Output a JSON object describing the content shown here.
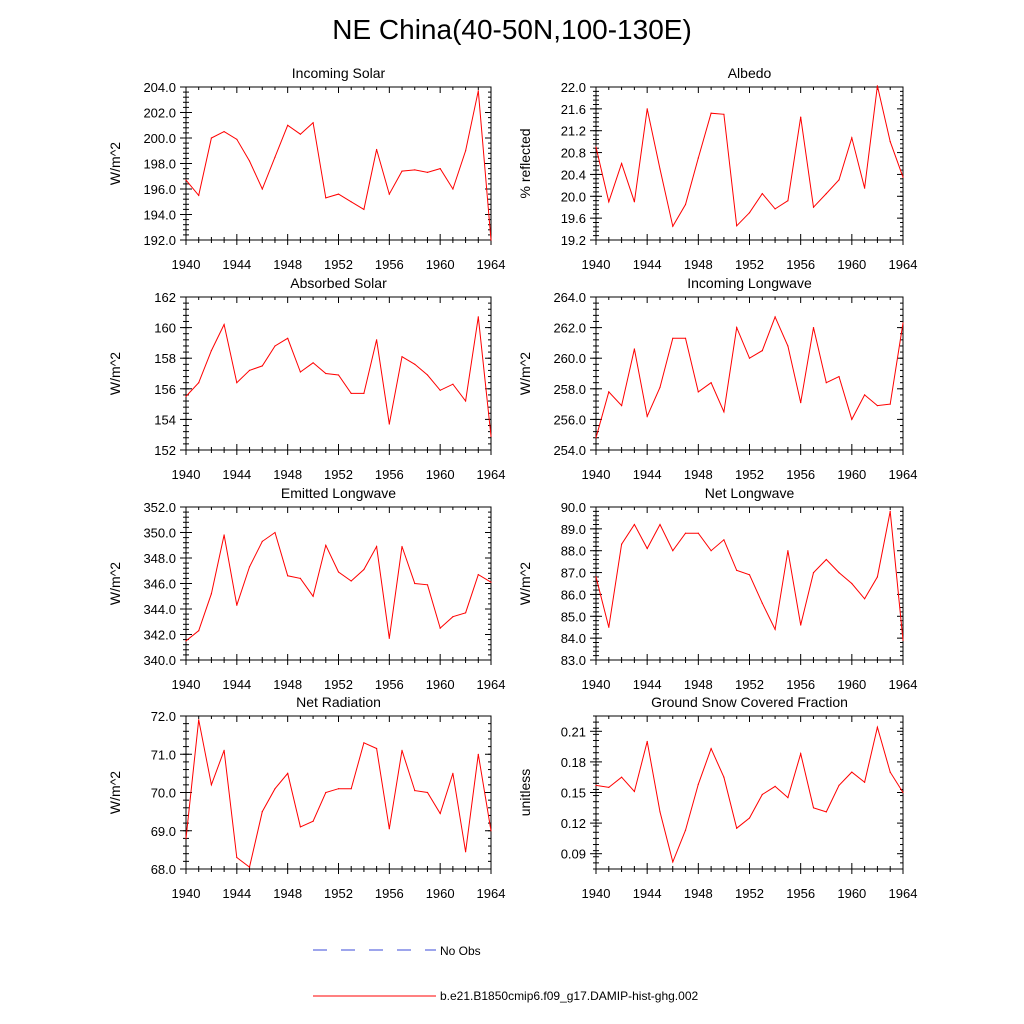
{
  "figure": {
    "title": "NE China(40-50N,100-130E)",
    "colors": {
      "model_line": "#ff0000",
      "obs_line": "#3b4bd8",
      "axis": "#000000"
    }
  },
  "legend": {
    "obs_label": "No Obs",
    "model_label": "b.e21.B1850cmip6.f09_g17.DAMIP-hist-ghg.002"
  },
  "chart_data": [
    {
      "type": "line",
      "title": "Incoming Solar",
      "ylabel": "W/m^2",
      "xlim": [
        1940,
        1964
      ],
      "ylim": [
        192,
        204
      ],
      "yticks": [
        "192.0",
        "194.0",
        "196.0",
        "198.0",
        "200.0",
        "202.0",
        "204.0"
      ],
      "ytick_values": [
        192,
        194,
        196,
        198,
        200,
        202,
        204
      ],
      "xticks": [
        "1940",
        "1944",
        "1948",
        "1952",
        "1956",
        "1960",
        "1964"
      ],
      "x": [
        1940,
        1941,
        1942,
        1943,
        1944,
        1945,
        1946,
        1947,
        1948,
        1949,
        1950,
        1951,
        1952,
        1953,
        1954,
        1955,
        1956,
        1957,
        1958,
        1959,
        1960,
        1961,
        1962,
        1963,
        1964
      ],
      "series": [
        {
          "name": "b.e21.B1850cmip6.f09_g17.DAMIP-hist-ghg.002",
          "values": [
            196.7,
            195.5,
            200.0,
            200.5,
            199.9,
            198.2,
            196.0,
            198.5,
            201.0,
            200.3,
            201.2,
            195.3,
            195.6,
            195.0,
            194.4,
            199.1,
            195.6,
            197.4,
            197.5,
            197.3,
            197.6,
            196.0,
            199.0,
            203.7,
            192.0
          ]
        }
      ]
    },
    {
      "type": "line",
      "title": "Albedo",
      "ylabel": "% reflected",
      "xlim": [
        1940,
        1964
      ],
      "ylim": [
        19.2,
        22.0
      ],
      "yticks": [
        "19.2",
        "19.6",
        "20.0",
        "20.4",
        "20.8",
        "21.2",
        "21.6",
        "22.0"
      ],
      "ytick_values": [
        19.2,
        19.6,
        20.0,
        20.4,
        20.8,
        21.2,
        21.6,
        22.0
      ],
      "xticks": [
        "1940",
        "1944",
        "1948",
        "1952",
        "1956",
        "1960",
        "1964"
      ],
      "x": [
        1940,
        1941,
        1942,
        1943,
        1944,
        1945,
        1946,
        1947,
        1948,
        1949,
        1950,
        1951,
        1952,
        1953,
        1954,
        1955,
        1956,
        1957,
        1958,
        1959,
        1960,
        1961,
        1962,
        1963,
        1964
      ],
      "series": [
        {
          "name": "b.e21.B1850cmip6.f09_g17.DAMIP-hist-ghg.002",
          "values": [
            20.9,
            19.9,
            20.6,
            19.9,
            21.6,
            20.5,
            19.45,
            19.85,
            20.7,
            21.52,
            21.5,
            19.46,
            19.7,
            20.05,
            19.77,
            19.92,
            21.45,
            19.8,
            20.05,
            20.3,
            21.07,
            20.15,
            22.02,
            21.0,
            20.35
          ]
        }
      ]
    },
    {
      "type": "line",
      "title": "Absorbed Solar",
      "ylabel": "W/m^2",
      "xlim": [
        1940,
        1964
      ],
      "ylim": [
        152,
        162
      ],
      "yticks": [
        "152",
        "154",
        "156",
        "158",
        "160",
        "162"
      ],
      "ytick_values": [
        152,
        154,
        156,
        158,
        160,
        162
      ],
      "xticks": [
        "1940",
        "1944",
        "1948",
        "1952",
        "1956",
        "1960",
        "1964"
      ],
      "x": [
        1940,
        1941,
        1942,
        1943,
        1944,
        1945,
        1946,
        1947,
        1948,
        1949,
        1950,
        1951,
        1952,
        1953,
        1954,
        1955,
        1956,
        1957,
        1958,
        1959,
        1960,
        1961,
        1962,
        1963,
        1964
      ],
      "series": [
        {
          "name": "b.e21.B1850cmip6.f09_g17.DAMIP-hist-ghg.002",
          "values": [
            155.5,
            156.4,
            158.5,
            160.2,
            156.4,
            157.2,
            157.5,
            158.8,
            159.3,
            157.1,
            157.7,
            157.0,
            156.9,
            155.7,
            155.7,
            159.2,
            153.7,
            158.1,
            157.6,
            156.9,
            155.9,
            156.3,
            155.2,
            160.7,
            152.9
          ]
        }
      ]
    },
    {
      "type": "line",
      "title": "Incoming Longwave",
      "ylabel": "W/m^2",
      "xlim": [
        1940,
        1964
      ],
      "ylim": [
        254,
        264
      ],
      "yticks": [
        "254.0",
        "256.0",
        "258.0",
        "260.0",
        "262.0",
        "264.0"
      ],
      "ytick_values": [
        254,
        256,
        258,
        260,
        262,
        264
      ],
      "xticks": [
        "1940",
        "1944",
        "1948",
        "1952",
        "1956",
        "1960",
        "1964"
      ],
      "x": [
        1940,
        1941,
        1942,
        1943,
        1944,
        1945,
        1946,
        1947,
        1948,
        1949,
        1950,
        1951,
        1952,
        1953,
        1954,
        1955,
        1956,
        1957,
        1958,
        1959,
        1960,
        1961,
        1962,
        1963,
        1964
      ],
      "series": [
        {
          "name": "b.e21.B1850cmip6.f09_g17.DAMIP-hist-ghg.002",
          "values": [
            254.8,
            257.8,
            256.9,
            260.6,
            256.2,
            258.1,
            261.3,
            261.3,
            257.8,
            258.4,
            256.5,
            262.0,
            260.0,
            260.5,
            262.7,
            260.8,
            257.1,
            262.0,
            258.4,
            258.8,
            256.0,
            257.6,
            256.9,
            257.0,
            262.3
          ]
        }
      ]
    },
    {
      "type": "line",
      "title": "Emitted Longwave",
      "ylabel": "W/m^2",
      "xlim": [
        1940,
        1964
      ],
      "ylim": [
        340,
        352
      ],
      "yticks": [
        "340.0",
        "342.0",
        "344.0",
        "346.0",
        "348.0",
        "350.0",
        "352.0"
      ],
      "ytick_values": [
        340,
        342,
        344,
        346,
        348,
        350,
        352
      ],
      "xticks": [
        "1940",
        "1944",
        "1948",
        "1952",
        "1956",
        "1960",
        "1964"
      ],
      "x": [
        1940,
        1941,
        1942,
        1943,
        1944,
        1945,
        1946,
        1947,
        1948,
        1949,
        1950,
        1951,
        1952,
        1953,
        1954,
        1955,
        1956,
        1957,
        1958,
        1959,
        1960,
        1961,
        1962,
        1963,
        1964
      ],
      "series": [
        {
          "name": "b.e21.B1850cmip6.f09_g17.DAMIP-hist-ghg.002",
          "values": [
            341.5,
            342.3,
            345.2,
            349.8,
            344.3,
            347.3,
            349.3,
            350.0,
            346.6,
            346.4,
            345.0,
            349.0,
            346.9,
            346.2,
            347.1,
            348.9,
            341.7,
            348.9,
            346.0,
            345.9,
            342.5,
            343.4,
            343.7,
            346.7,
            346.1
          ]
        }
      ]
    },
    {
      "type": "line",
      "title": "Net Longwave",
      "ylabel": "W/m^2",
      "xlim": [
        1940,
        1964
      ],
      "ylim": [
        83,
        90
      ],
      "yticks": [
        "83.0",
        "84.0",
        "85.0",
        "86.0",
        "87.0",
        "88.0",
        "89.0",
        "90.0"
      ],
      "ytick_values": [
        83,
        84,
        85,
        86,
        87,
        88,
        89,
        90
      ],
      "xticks": [
        "1940",
        "1944",
        "1948",
        "1952",
        "1956",
        "1960",
        "1964"
      ],
      "x": [
        1940,
        1941,
        1942,
        1943,
        1944,
        1945,
        1946,
        1947,
        1948,
        1949,
        1950,
        1951,
        1952,
        1953,
        1954,
        1955,
        1956,
        1957,
        1958,
        1959,
        1960,
        1961,
        1962,
        1963,
        1964
      ],
      "series": [
        {
          "name": "b.e21.B1850cmip6.f09_g17.DAMIP-hist-ghg.002",
          "values": [
            86.8,
            84.5,
            88.3,
            89.2,
            88.1,
            89.2,
            88.0,
            88.8,
            88.8,
            88.0,
            88.5,
            87.1,
            86.9,
            85.6,
            84.4,
            88.0,
            84.6,
            87.0,
            87.6,
            87.0,
            86.5,
            85.8,
            86.8,
            89.8,
            83.9
          ]
        }
      ]
    },
    {
      "type": "line",
      "title": "Net Radiation",
      "ylabel": "W/m^2",
      "xlim": [
        1940,
        1964
      ],
      "ylim": [
        68,
        72
      ],
      "yticks": [
        "68.0",
        "69.0",
        "70.0",
        "71.0",
        "72.0"
      ],
      "ytick_values": [
        68,
        69,
        70,
        71,
        72
      ],
      "xticks": [
        "1940",
        "1944",
        "1948",
        "1952",
        "1956",
        "1960",
        "1964"
      ],
      "x": [
        1940,
        1941,
        1942,
        1943,
        1944,
        1945,
        1946,
        1947,
        1948,
        1949,
        1950,
        1951,
        1952,
        1953,
        1954,
        1955,
        1956,
        1957,
        1958,
        1959,
        1960,
        1961,
        1962,
        1963,
        1964
      ],
      "series": [
        {
          "name": "b.e21.B1850cmip6.f09_g17.DAMIP-hist-ghg.002",
          "values": [
            68.8,
            71.9,
            70.2,
            71.1,
            68.3,
            68.05,
            69.5,
            70.1,
            70.5,
            69.1,
            69.25,
            70.0,
            70.1,
            70.1,
            71.3,
            71.15,
            69.05,
            71.1,
            70.05,
            70.0,
            69.45,
            70.5,
            68.45,
            71.0,
            69.0
          ]
        }
      ]
    },
    {
      "type": "line",
      "title": "Ground Snow Covered Fraction",
      "ylabel": "unitless",
      "xlim": [
        1940,
        1964
      ],
      "ylim": [
        0.075,
        0.225
      ],
      "yticks": [
        "0.09",
        "0.12",
        "0.15",
        "0.18",
        "0.21"
      ],
      "ytick_values": [
        0.09,
        0.12,
        0.15,
        0.18,
        0.21
      ],
      "xticks": [
        "1940",
        "1944",
        "1948",
        "1952",
        "1956",
        "1960",
        "1964"
      ],
      "x": [
        1940,
        1941,
        1942,
        1943,
        1944,
        1945,
        1946,
        1947,
        1948,
        1949,
        1950,
        1951,
        1952,
        1953,
        1954,
        1955,
        1956,
        1957,
        1958,
        1959,
        1960,
        1961,
        1962,
        1963,
        1964
      ],
      "series": [
        {
          "name": "b.e21.B1850cmip6.f09_g17.DAMIP-hist-ghg.002",
          "values": [
            0.157,
            0.155,
            0.165,
            0.151,
            0.2,
            0.131,
            0.082,
            0.113,
            0.158,
            0.193,
            0.165,
            0.115,
            0.125,
            0.148,
            0.156,
            0.145,
            0.188,
            0.135,
            0.131,
            0.157,
            0.17,
            0.16,
            0.214,
            0.17,
            0.15
          ]
        }
      ]
    }
  ]
}
